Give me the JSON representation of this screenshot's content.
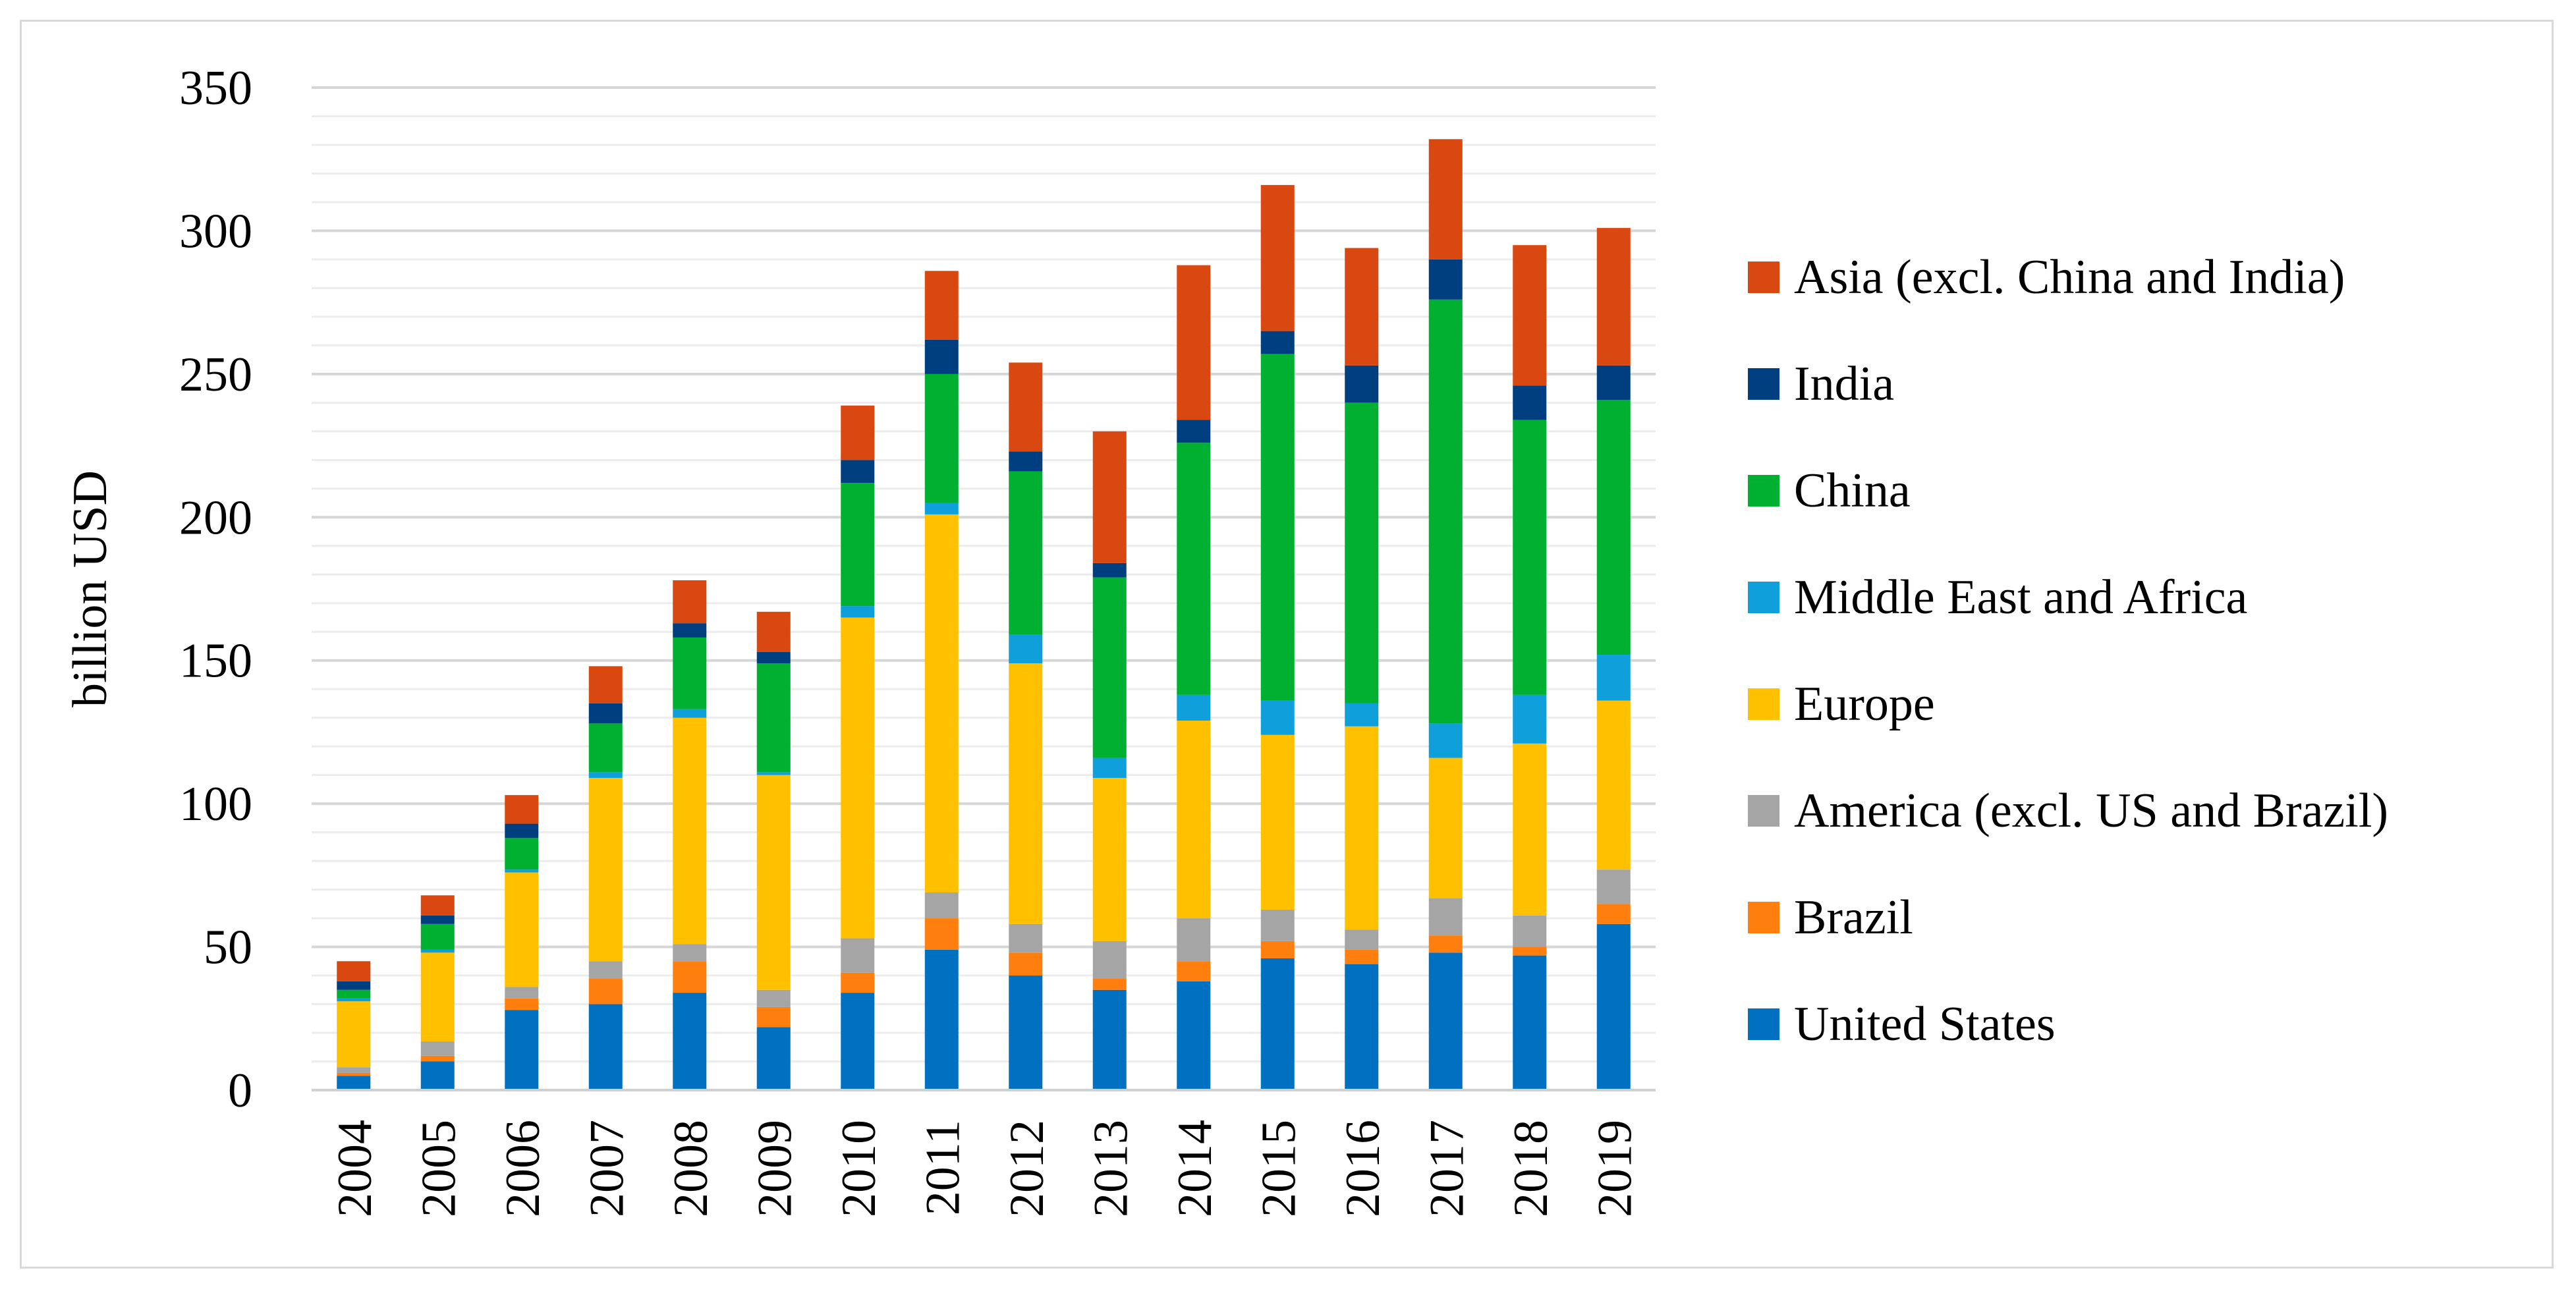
{
  "chart_data": {
    "type": "bar",
    "stacked": true,
    "title": "",
    "xlabel": "",
    "ylabel": "billion USD",
    "ylim": [
      0,
      350
    ],
    "ytick_step": 50,
    "minor_gridline_step": 10,
    "grid": true,
    "legend_position": "right",
    "categories": [
      "2004",
      "2005",
      "2006",
      "2007",
      "2008",
      "2009",
      "2010",
      "2011",
      "2012",
      "2013",
      "2014",
      "2015",
      "2016",
      "2017",
      "2018",
      "2019"
    ],
    "series": [
      {
        "name": "United States",
        "color": "#0070C0",
        "values": [
          5,
          10,
          28,
          30,
          34,
          22,
          34,
          49,
          40,
          35,
          38,
          46,
          44,
          48,
          47,
          58
        ]
      },
      {
        "name": "Brazil",
        "color": "#FF7F0E",
        "values": [
          1,
          2,
          4,
          9,
          11,
          7,
          7,
          11,
          8,
          4,
          7,
          6,
          5,
          6,
          3,
          7
        ]
      },
      {
        "name": "America (excl. US and Brazil)",
        "color": "#A5A5A5",
        "values": [
          2,
          5,
          4,
          6,
          6,
          6,
          12,
          9,
          10,
          13,
          15,
          11,
          7,
          13,
          11,
          12
        ]
      },
      {
        "name": "Europe",
        "color": "#FFC000",
        "values": [
          23,
          31,
          40,
          64,
          79,
          75,
          112,
          132,
          91,
          57,
          69,
          61,
          71,
          49,
          60,
          59
        ]
      },
      {
        "name": "Middle East and Africa",
        "color": "#0FA0DB",
        "values": [
          1,
          1,
          1,
          2,
          3,
          1,
          4,
          4,
          10,
          7,
          9,
          12,
          8,
          12,
          17,
          16
        ]
      },
      {
        "name": "China",
        "color": "#00B030",
        "values": [
          3,
          9,
          11,
          17,
          25,
          38,
          43,
          45,
          57,
          63,
          88,
          121,
          105,
          148,
          96,
          89
        ]
      },
      {
        "name": "India",
        "color": "#003F7F",
        "values": [
          3,
          3,
          5,
          7,
          5,
          4,
          8,
          12,
          7,
          5,
          8,
          8,
          13,
          14,
          12,
          12
        ]
      },
      {
        "name": "Asia (excl. China and India)",
        "color": "#D94810",
        "values": [
          7,
          7,
          10,
          13,
          15,
          14,
          19,
          24,
          31,
          46,
          54,
          51,
          41,
          42,
          49,
          48
        ]
      }
    ]
  }
}
